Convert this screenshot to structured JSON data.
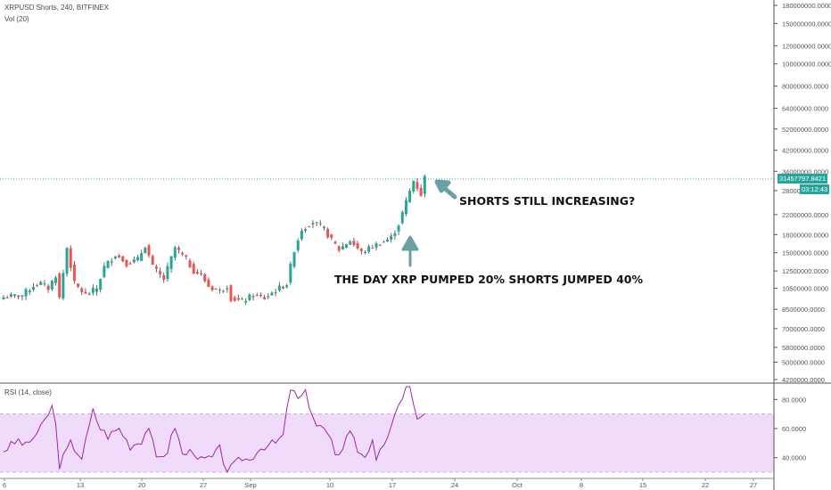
{
  "header": {
    "title": "XRPUSD Shorts, 240, BITFINEX",
    "volume_label": "Vol (20)",
    "rsi_label": "RSI (14, close)"
  },
  "price_tag": {
    "value": "31457797.8421",
    "timer": "03:12:43"
  },
  "annotations": {
    "top": "SHORTS STILL INCREASING?",
    "bottom": "THE DAY XRP PUMPED 20% SHORTS JUMPED 40%"
  },
  "colors": {
    "up": "#26a69a",
    "down": "#ef5350",
    "rsi_line": "#9c27b0",
    "rsi_band": "#f0dcfa",
    "arrow": "#6e9fa0"
  },
  "chart_data": [
    {
      "type": "candlestick",
      "title": "XRPUSD Shorts, 240, BITFINEX",
      "y_scale": "log",
      "ylim": [
        4200000,
        180000000
      ],
      "y_ticks": [
        "180000000.0000",
        "150000000.0000",
        "120000000.0000",
        "100000000.0000",
        "80000000.0000",
        "64000000.0000",
        "52000000.0000",
        "42000000.0000",
        "34000000.0000",
        "28000000.0000",
        "22000000.0000",
        "18000000.0000",
        "15000000.0000",
        "12500000.0000",
        "10500000.0000",
        "8500000.0000",
        "7000000.0000",
        "5800000.0000",
        "5000000.0000",
        "4200000.0000"
      ],
      "x_ticks": [
        "6",
        "13",
        "20",
        "27",
        "Sep",
        "10",
        "17",
        "24",
        "Oct",
        "8",
        "15",
        "22",
        "27"
      ],
      "last_value": 31457797.8421,
      "anchors": [
        [
          0,
          9600000
        ],
        [
          5,
          9800000
        ],
        [
          8,
          10800000
        ],
        [
          10,
          11000000
        ],
        [
          12,
          10500000
        ],
        [
          14,
          12000000
        ],
        [
          15,
          9500000
        ],
        [
          17,
          15800000
        ],
        [
          19,
          11000000
        ],
        [
          22,
          9800000
        ],
        [
          25,
          10500000
        ],
        [
          27,
          13000000
        ],
        [
          30,
          14800000
        ],
        [
          33,
          13500000
        ],
        [
          36,
          14000000
        ],
        [
          38,
          16200000
        ],
        [
          40,
          13000000
        ],
        [
          43,
          11500000
        ],
        [
          46,
          15800000
        ],
        [
          49,
          14000000
        ],
        [
          51,
          12500000
        ],
        [
          53,
          12000000
        ],
        [
          55,
          10700000
        ],
        [
          58,
          10200000
        ],
        [
          60,
          10800000
        ],
        [
          61,
          9500000
        ],
        [
          64,
          9200000
        ],
        [
          67,
          9800000
        ],
        [
          70,
          9500000
        ],
        [
          73,
          10300000
        ],
        [
          76,
          11000000
        ],
        [
          78,
          15500000
        ],
        [
          80,
          19000000
        ],
        [
          83,
          20500000
        ],
        [
          86,
          19000000
        ],
        [
          88,
          17000000
        ],
        [
          90,
          15500000
        ],
        [
          93,
          17000000
        ],
        [
          96,
          15000000
        ],
        [
          99,
          16000000
        ],
        [
          102,
          16800000
        ],
        [
          104,
          17500000
        ],
        [
          106,
          20000000
        ],
        [
          108,
          25000000
        ],
        [
          110,
          31000000
        ],
        [
          111,
          29000000
        ],
        [
          112,
          27000000
        ],
        [
          113,
          32000000
        ]
      ]
    },
    {
      "type": "line",
      "title": "RSI (14, close)",
      "ylim": [
        30,
        90
      ],
      "y_ticks": [
        "80.0000",
        "60.0000",
        "40.0000"
      ],
      "bands": [
        30,
        70
      ],
      "x_ticks": [
        "6",
        "13",
        "20",
        "27",
        "Sep",
        "10",
        "17",
        "24",
        "Oct",
        "8",
        "15",
        "22",
        "27"
      ],
      "anchors": [
        [
          0,
          45
        ],
        [
          4,
          52
        ],
        [
          6,
          48
        ],
        [
          10,
          60
        ],
        [
          13,
          75
        ],
        [
          14,
          62
        ],
        [
          15,
          35
        ],
        [
          18,
          50
        ],
        [
          21,
          40
        ],
        [
          24,
          72
        ],
        [
          26,
          60
        ],
        [
          28,
          55
        ],
        [
          31,
          60
        ],
        [
          34,
          48
        ],
        [
          37,
          52
        ],
        [
          39,
          62
        ],
        [
          41,
          38
        ],
        [
          44,
          45
        ],
        [
          46,
          62
        ],
        [
          48,
          42
        ],
        [
          51,
          45
        ],
        [
          53,
          38
        ],
        [
          56,
          40
        ],
        [
          58,
          46
        ],
        [
          60,
          30
        ],
        [
          62,
          35
        ],
        [
          64,
          40
        ],
        [
          66,
          38
        ],
        [
          68,
          45
        ],
        [
          70,
          48
        ],
        [
          73,
          50
        ],
        [
          75,
          55
        ],
        [
          77,
          88
        ],
        [
          79,
          80
        ],
        [
          81,
          84
        ],
        [
          84,
          62
        ],
        [
          86,
          60
        ],
        [
          88,
          50
        ],
        [
          89,
          40
        ],
        [
          91,
          48
        ],
        [
          93,
          60
        ],
        [
          95,
          45
        ],
        [
          97,
          42
        ],
        [
          99,
          50
        ],
        [
          100,
          36
        ],
        [
          102,
          50
        ],
        [
          104,
          60
        ],
        [
          106,
          75
        ],
        [
          108,
          90
        ],
        [
          109,
          88
        ],
        [
          111,
          65
        ],
        [
          112,
          68
        ],
        [
          113,
          72
        ]
      ]
    }
  ]
}
